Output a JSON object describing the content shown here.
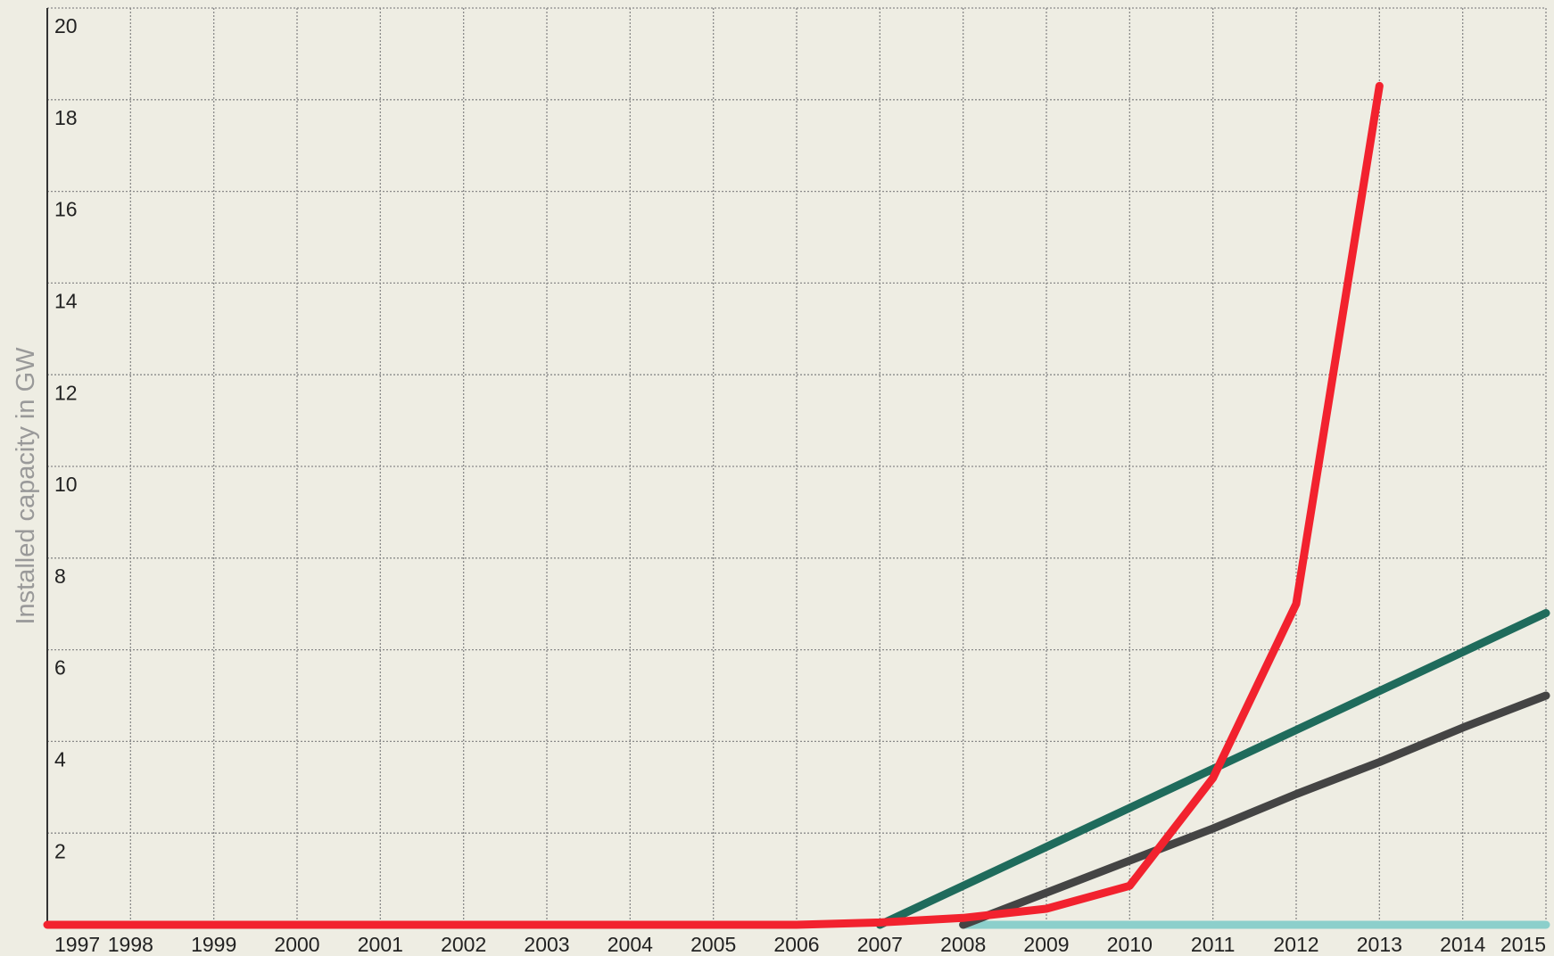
{
  "chart_data": {
    "type": "line",
    "y_label": "Installed capacity in GW",
    "x": [
      1997,
      1998,
      1999,
      2000,
      2001,
      2002,
      2003,
      2004,
      2005,
      2006,
      2007,
      2008,
      2009,
      2010,
      2011,
      2012,
      2013,
      2014,
      2015
    ],
    "xlim": [
      1997,
      2015
    ],
    "xticks": [
      1997,
      1998,
      1999,
      2000,
      2001,
      2002,
      2003,
      2004,
      2005,
      2006,
      2007,
      2008,
      2009,
      2010,
      2011,
      2012,
      2013,
      2014,
      2015
    ],
    "ylim": [
      0,
      20
    ],
    "yticks": [
      2,
      4,
      6,
      8,
      10,
      12,
      14,
      16,
      18,
      20
    ],
    "grid": true,
    "series": [
      {
        "color": "#8ccfcb",
        "values": [
          null,
          null,
          null,
          null,
          null,
          null,
          null,
          null,
          null,
          null,
          null,
          0,
          0,
          0,
          0,
          0,
          0,
          0,
          0
        ]
      },
      {
        "color": "#444444",
        "values": [
          null,
          null,
          null,
          null,
          null,
          null,
          null,
          null,
          null,
          null,
          null,
          0,
          0.7,
          1.4,
          2.1,
          2.85,
          3.55,
          4.3,
          5.0
        ]
      },
      {
        "color": "#1f6b5c",
        "values": [
          null,
          null,
          null,
          null,
          null,
          null,
          null,
          null,
          null,
          null,
          0,
          0.85,
          1.7,
          2.55,
          3.4,
          4.25,
          5.1,
          5.95,
          6.8
        ]
      },
      {
        "color": "#f2222e",
        "values": [
          0,
          0,
          0,
          0,
          0,
          0,
          0,
          0,
          0,
          0,
          0.05,
          0.15,
          0.35,
          0.85,
          3.2,
          7.0,
          18.3,
          null,
          null
        ]
      }
    ]
  }
}
